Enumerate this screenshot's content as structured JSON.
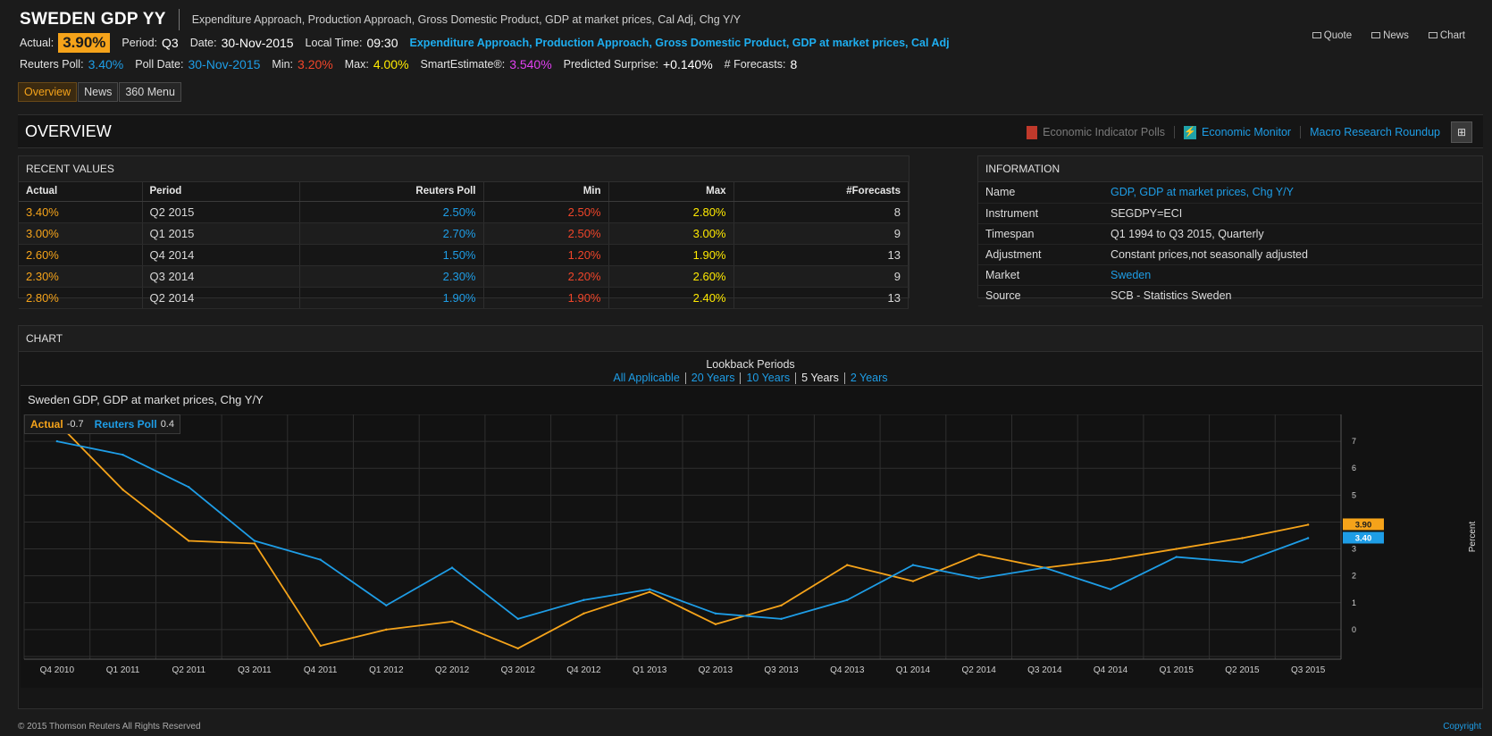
{
  "header": {
    "title": "SWEDEN GDP YY",
    "subtitle": "Expenditure Approach, Production Approach, Gross Domestic Product, GDP at market prices, Cal Adj, Chg Y/Y",
    "actual_label": "Actual:",
    "actual_value": "3.90%",
    "period_label": "Period:",
    "period_value": "Q3",
    "date_label": "Date:",
    "date_value": "30-Nov-2015",
    "localtime_label": "Local Time:",
    "localtime_value": "09:30",
    "description_link": "Expenditure Approach, Production Approach, Gross Domestic Product, GDP at market prices, Cal Adj",
    "poll_label": "Reuters Poll:",
    "poll_value": "3.40%",
    "polldate_label": "Poll Date:",
    "polldate_value": "30-Nov-2015",
    "min_label": "Min:",
    "min_value": "3.20%",
    "max_label": "Max:",
    "max_value": "4.00%",
    "smart_label": "SmartEstimate®:",
    "smart_value": "3.540%",
    "surprise_label": "Predicted Surprise:",
    "surprise_value": "+0.140%",
    "forecasts_label": "# Forecasts:",
    "forecasts_value": "8"
  },
  "top_links": {
    "quote": "Quote",
    "news": "News",
    "chart": "Chart"
  },
  "tabs": [
    {
      "label": "Overview",
      "active": true
    },
    {
      "label": "News",
      "active": false
    },
    {
      "label": "360 Menu",
      "active": false
    }
  ],
  "overview": {
    "title": "OVERVIEW",
    "poll_link": "Economic Indicator Polls",
    "monitor_link": "Economic Monitor",
    "macro_link": "Macro Research Roundup"
  },
  "recent_values": {
    "title": "RECENT VALUES",
    "columns": [
      "Actual",
      "Period",
      "Reuters Poll",
      "Min",
      "Max",
      "#Forecasts"
    ],
    "rows": [
      [
        "3.40%",
        "Q2 2015",
        "2.50%",
        "2.50%",
        "2.80%",
        "8"
      ],
      [
        "3.00%",
        "Q1 2015",
        "2.70%",
        "2.50%",
        "3.00%",
        "9"
      ],
      [
        "2.60%",
        "Q4 2014",
        "1.50%",
        "1.20%",
        "1.90%",
        "13"
      ],
      [
        "2.30%",
        "Q3 2014",
        "2.30%",
        "2.20%",
        "2.60%",
        "9"
      ],
      [
        "2.80%",
        "Q2 2014",
        "1.90%",
        "1.90%",
        "2.40%",
        "13"
      ]
    ]
  },
  "information": {
    "title": "INFORMATION",
    "rows": [
      {
        "key": "Name",
        "value": "GDP, GDP at market prices, Chg Y/Y",
        "link": true
      },
      {
        "key": "Instrument",
        "value": "SEGDPY=ECI",
        "link": false
      },
      {
        "key": "Timespan",
        "value": "Q1 1994 to Q3 2015, Quarterly",
        "link": false
      },
      {
        "key": "Adjustment",
        "value": "Constant prices,not seasonally adjusted",
        "link": false
      },
      {
        "key": "Market",
        "value": "Sweden",
        "link": true
      },
      {
        "key": "Source",
        "value": "SCB - Statistics Sweden",
        "link": false
      }
    ]
  },
  "chart_panel": {
    "title": "CHART",
    "lookback_label": "Lookback Periods",
    "lookback_options": [
      {
        "label": "All Applicable",
        "current": false
      },
      {
        "label": "20 Years",
        "current": false
      },
      {
        "label": "10 Years",
        "current": false
      },
      {
        "label": "5 Years",
        "current": true
      },
      {
        "label": "2 Years",
        "current": false
      }
    ]
  },
  "chart_data": {
    "type": "line",
    "title": "Sweden GDP, GDP at market prices, Chg Y/Y",
    "ylabel": "Percent",
    "ylim": [
      -1.1,
      8.0
    ],
    "yticks": [
      0,
      1,
      2,
      3,
      4,
      5,
      6,
      7
    ],
    "grid": true,
    "legend_placement": "top-left",
    "categories": [
      "Q4 2010",
      "Q1 2011",
      "Q2 2011",
      "Q3 2011",
      "Q4 2011",
      "Q1 2012",
      "Q2 2012",
      "Q3 2012",
      "Q4 2012",
      "Q1 2013",
      "Q2 2013",
      "Q3 2013",
      "Q4 2013",
      "Q1 2014",
      "Q2 2014",
      "Q3 2014",
      "Q4 2014",
      "Q1 2015",
      "Q2 2015",
      "Q3 2015"
    ],
    "series": [
      {
        "name": "Actual",
        "legend_value": "-0.7",
        "end_label": "3.90",
        "color": "#f5a31a",
        "values": [
          7.7,
          5.2,
          3.3,
          3.2,
          -0.6,
          0.0,
          0.3,
          -0.7,
          0.6,
          1.4,
          0.2,
          0.9,
          2.4,
          1.8,
          2.8,
          2.3,
          2.6,
          3.0,
          3.4,
          3.9
        ]
      },
      {
        "name": "Reuters Poll",
        "legend_value": "0.4",
        "end_label": "3.40",
        "color": "#1e9de6",
        "values": [
          7.0,
          6.5,
          5.3,
          3.3,
          2.6,
          0.9,
          2.3,
          0.4,
          1.1,
          1.5,
          0.6,
          0.4,
          1.1,
          2.4,
          1.9,
          2.3,
          1.5,
          2.7,
          2.5,
          3.4
        ]
      }
    ]
  },
  "footer": {
    "copyright": "© 2015 Thomson Reuters All Rights Reserved",
    "copyright_link": "Copyright"
  }
}
